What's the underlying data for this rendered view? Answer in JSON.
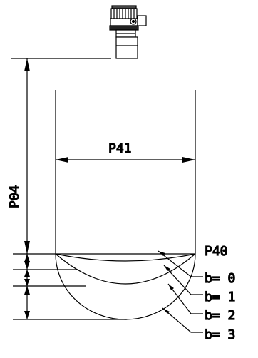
{
  "labels": {
    "distance_parameter": "P04",
    "diameter_parameter": "P41",
    "bottom_parameter": "P40"
  },
  "bottom_shapes": [
    {
      "text": "b= 0"
    },
    {
      "text": "b= 1"
    },
    {
      "text": "b= 2"
    },
    {
      "text": "b= 3"
    }
  ],
  "device_icon": "ultrasonic-level-sensor-icon"
}
